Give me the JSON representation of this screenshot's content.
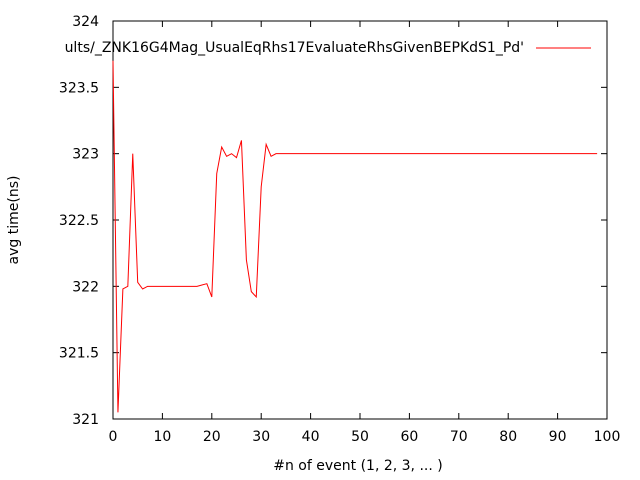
{
  "chart_data": {
    "type": "line",
    "title": "",
    "xlabel": "#n of event (1, 2, 3, ... )",
    "ylabel": "avg time(ns)",
    "xlim": [
      0,
      100
    ],
    "ylim": [
      321,
      324
    ],
    "xticks": [
      "0",
      "10",
      "20",
      "30",
      "40",
      "50",
      "60",
      "70",
      "80",
      "90",
      "100"
    ],
    "yticks": [
      "321",
      "321.5",
      "322",
      "322.5",
      "323",
      "323.5",
      "324"
    ],
    "grid": false,
    "legend_position": "top-right",
    "series": [
      {
        "name": "ults/_ZNK16G4Mag_UsualEqRhs17EvaluateRhsGivenBEPKdS1_Pd'",
        "color": "#ff0000",
        "x": [
          0,
          1,
          2,
          3,
          4,
          5,
          6,
          7,
          8,
          9,
          10,
          11,
          12,
          13,
          14,
          15,
          16,
          17,
          18,
          19,
          20,
          21,
          22,
          23,
          24,
          25,
          26,
          27,
          28,
          29,
          30,
          31,
          32,
          33,
          34,
          40,
          50,
          60,
          70,
          80,
          90,
          98
        ],
        "y": [
          323.7,
          321.05,
          321.98,
          322.0,
          323.0,
          322.03,
          321.98,
          322.0,
          322.0,
          322.0,
          322.0,
          322.0,
          322.0,
          322.0,
          322.0,
          322.0,
          322.0,
          322.0,
          322.01,
          322.02,
          321.92,
          322.85,
          323.05,
          322.98,
          323.0,
          322.97,
          323.1,
          322.2,
          321.96,
          321.92,
          322.75,
          323.07,
          322.98,
          323.0,
          323.0,
          323.0,
          323.0,
          323.0,
          323.0,
          323.0,
          323.0,
          323.0
        ]
      }
    ]
  }
}
